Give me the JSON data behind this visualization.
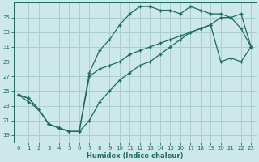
{
  "xlabel": "Humidex (Indice chaleur)",
  "bg_color": "#cde8e8",
  "grid_color": "#aacfcf",
  "line_color": "#1e6b5e",
  "xlim": [
    -0.5,
    23.5
  ],
  "ylim": [
    18.0,
    37.0
  ],
  "xticks": [
    0,
    1,
    2,
    3,
    4,
    5,
    6,
    7,
    8,
    9,
    10,
    11,
    12,
    13,
    14,
    15,
    16,
    17,
    18,
    19,
    20,
    21,
    22,
    23
  ],
  "yticks": [
    19,
    21,
    23,
    25,
    27,
    29,
    31,
    33,
    35
  ],
  "line1_x": [
    0,
    1,
    2,
    3,
    4,
    5,
    6,
    7,
    8,
    9,
    10,
    11,
    12,
    13,
    14,
    15,
    16,
    17,
    18,
    19,
    20,
    21,
    22,
    23
  ],
  "line1_y": [
    24.5,
    24.0,
    22.5,
    20.5,
    20.0,
    19.5,
    19.5,
    27.5,
    30.5,
    32.0,
    34.0,
    35.5,
    36.5,
    36.5,
    36.0,
    36.0,
    35.5,
    36.5,
    36.0,
    35.5,
    35.5,
    35.0,
    33.5,
    31.0
  ],
  "line2_x": [
    0,
    1,
    2,
    3,
    4,
    5,
    6,
    7,
    8,
    9,
    10,
    11,
    12,
    13,
    14,
    15,
    16,
    17,
    18,
    19,
    20,
    21,
    22,
    23
  ],
  "line2_y": [
    24.5,
    24.0,
    22.5,
    20.5,
    20.0,
    19.5,
    19.5,
    27.0,
    28.0,
    28.5,
    29.0,
    30.0,
    30.5,
    31.0,
    31.5,
    32.0,
    32.5,
    33.0,
    33.5,
    34.0,
    29.0,
    29.5,
    29.0,
    31.0
  ],
  "line3_x": [
    0,
    1,
    2,
    3,
    4,
    5,
    6,
    7,
    8,
    9,
    10,
    11,
    12,
    13,
    14,
    15,
    16,
    17,
    18,
    19,
    20,
    21,
    22,
    23
  ],
  "line3_y": [
    24.5,
    23.5,
    22.5,
    20.5,
    20.0,
    19.5,
    19.5,
    21.0,
    23.5,
    25.0,
    26.5,
    27.5,
    28.5,
    29.0,
    30.0,
    31.0,
    32.0,
    33.0,
    33.5,
    34.0,
    35.0,
    35.0,
    35.5,
    31.0
  ]
}
